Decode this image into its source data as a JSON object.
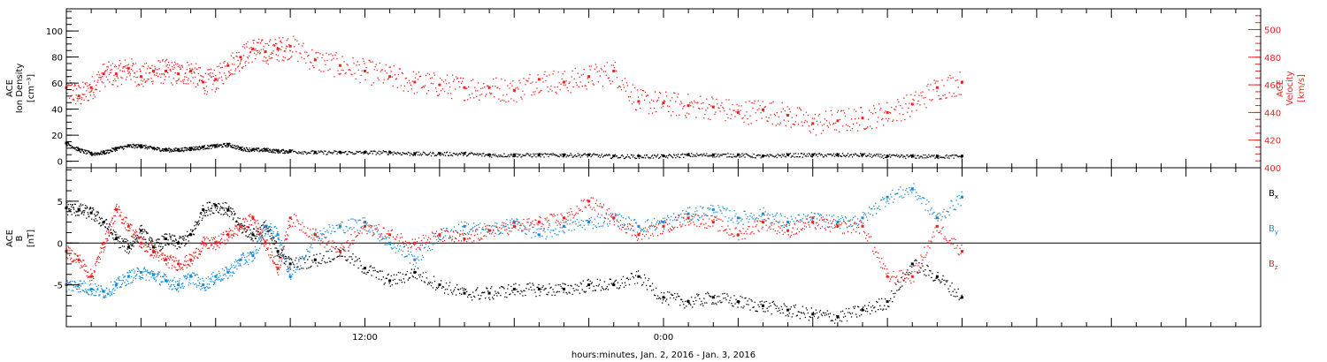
{
  "colors": {
    "axes": "#000000",
    "density": "#000000",
    "velocity": "#e8231f",
    "bx": "#000000",
    "by": "#1a8ad4",
    "bz": "#e8231f"
  },
  "x_axis": {
    "label": "hours:minutes, Jan.  2, 2016 - Jan.  3, 2016",
    "tick_labels": [
      "12:00",
      "0:00"
    ]
  },
  "chart_data": [
    {
      "type": "scatter",
      "name": "plasma",
      "x_unit": "hours since 2016-01-02 00:00",
      "xlim": [
        0,
        48
      ],
      "grid": false,
      "left_axis": {
        "label_lines": [
          "ACE",
          "Ion Density"
        ],
        "unit": "[cm⁻³]",
        "ylim": [
          -5,
          117
        ],
        "ticks": [
          0,
          20,
          40,
          60,
          80,
          100
        ]
      },
      "right_axis": {
        "label_lines": [
          "ACE",
          "Velocity"
        ],
        "unit": "[km/s]",
        "ylim": [
          400,
          515
        ],
        "ticks": [
          400,
          420,
          440,
          460,
          480,
          500
        ]
      },
      "series": [
        {
          "axis": "left",
          "color_key": "density",
          "x": [
            0,
            0.5,
            1,
            1.5,
            2,
            2.5,
            3,
            3.5,
            4,
            4.5,
            5,
            5.5,
            6,
            6.5,
            7,
            7.5,
            8,
            8.5,
            9,
            10,
            11,
            12,
            13,
            14,
            15,
            16,
            17,
            18,
            19,
            20,
            21,
            22,
            23,
            24,
            25,
            26,
            27,
            28,
            29,
            30,
            31,
            32,
            33,
            34,
            35,
            36
          ],
          "y": [
            14,
            9,
            6,
            7,
            10,
            12,
            12,
            10,
            9,
            9,
            10,
            11,
            12,
            13,
            10,
            9,
            9,
            8,
            8,
            7,
            7,
            7,
            7,
            6,
            6,
            6,
            5,
            5,
            5,
            5,
            5,
            4,
            4,
            4,
            5,
            5,
            5,
            4,
            5,
            5,
            5,
            5,
            4,
            4,
            4,
            4
          ]
        },
        {
          "axis": "right",
          "color_key": "velocity",
          "x": [
            0,
            0.5,
            1,
            1.5,
            2,
            2.5,
            3,
            3.5,
            4,
            4.5,
            5,
            5.5,
            6,
            6.5,
            7,
            7.5,
            8,
            8.5,
            9,
            10,
            11,
            12,
            13,
            14,
            15,
            16,
            17,
            18,
            19,
            20,
            21,
            22,
            23,
            24,
            25,
            26,
            27,
            28,
            29,
            30,
            31,
            32,
            33,
            34,
            35,
            36
          ],
          "y": [
            458,
            452,
            458,
            468,
            468,
            472,
            466,
            470,
            470,
            468,
            470,
            462,
            464,
            474,
            480,
            486,
            484,
            486,
            488,
            478,
            474,
            470,
            466,
            462,
            460,
            458,
            458,
            456,
            464,
            462,
            466,
            470,
            448,
            447,
            445,
            444,
            440,
            442,
            438,
            432,
            434,
            436,
            440,
            446,
            458,
            462
          ]
        }
      ]
    },
    {
      "type": "scatter",
      "name": "magnetic-field",
      "x_unit": "hours since 2016-01-02 00:00",
      "xlim": [
        0,
        48
      ],
      "grid": false,
      "zero_line": true,
      "left_axis": {
        "label_lines": [
          "ACE",
          "B"
        ],
        "unit": "[nT]",
        "ylim": [
          -10,
          9
        ],
        "ticks": [
          -5,
          0,
          5
        ]
      },
      "legend": {
        "placement": "right",
        "entries": [
          "Bx",
          "By",
          "Bz"
        ]
      },
      "series": [
        {
          "name": "Bx",
          "color_key": "bx",
          "x": [
            0,
            0.5,
            1,
            1.5,
            2,
            2.5,
            3,
            3.5,
            4,
            4.5,
            5,
            5.5,
            6,
            6.5,
            7,
            7.5,
            8,
            8.5,
            9,
            10,
            11,
            12,
            13,
            14,
            15,
            16,
            17,
            18,
            19,
            20,
            21,
            22,
            23,
            24,
            25,
            26,
            27,
            28,
            29,
            30,
            31,
            32,
            33,
            34,
            35,
            36
          ],
          "y": [
            4.2,
            4.0,
            3.6,
            2.5,
            0.5,
            -0.5,
            1.5,
            -0.5,
            0.5,
            0.0,
            1.0,
            4.0,
            4.5,
            4.0,
            2.0,
            1.0,
            2.0,
            -1.0,
            -2.5,
            -2.0,
            -1.0,
            -3.0,
            -4.5,
            -3.5,
            -5.0,
            -6.0,
            -6.0,
            -5.5,
            -5.5,
            -5.5,
            -5.0,
            -5.0,
            -4.0,
            -6.5,
            -7.0,
            -6.5,
            -7.0,
            -7.5,
            -8.0,
            -8.5,
            -8.8,
            -8.0,
            -7.0,
            -2.5,
            -4.0,
            -6.5
          ]
        },
        {
          "name": "By",
          "color_key": "by",
          "x": [
            0,
            0.5,
            1,
            1.5,
            2,
            2.5,
            3,
            3.5,
            4,
            4.5,
            5,
            5.5,
            6,
            6.5,
            7,
            7.5,
            8,
            8.5,
            9,
            10,
            11,
            12,
            13,
            14,
            15,
            16,
            17,
            18,
            19,
            20,
            21,
            22,
            23,
            24,
            25,
            26,
            27,
            28,
            29,
            30,
            31,
            32,
            33,
            34,
            35,
            36
          ],
          "y": [
            -5.0,
            -5.0,
            -5.5,
            -5.8,
            -5.0,
            -4.0,
            -3.5,
            -3.8,
            -4.5,
            -5.0,
            -4.0,
            -5.0,
            -4.0,
            -3.5,
            -2.0,
            -1.5,
            2.0,
            1.0,
            -4.0,
            1.0,
            2.0,
            2.5,
            0.0,
            -2.0,
            1.0,
            2.0,
            1.5,
            2.5,
            1.0,
            2.0,
            2.5,
            3.0,
            2.0,
            2.5,
            3.5,
            4.0,
            3.0,
            3.5,
            2.5,
            3.0,
            2.5,
            3.0,
            5.5,
            6.5,
            3.0,
            5.5
          ]
        },
        {
          "name": "Bz",
          "color_key": "bz",
          "x": [
            0,
            0.5,
            1,
            1.5,
            2,
            2.5,
            3,
            3.5,
            4,
            4.5,
            5,
            5.5,
            6,
            6.5,
            7,
            7.5,
            8,
            8.5,
            9,
            10,
            11,
            12,
            13,
            14,
            15,
            16,
            17,
            18,
            19,
            20,
            21,
            22,
            23,
            24,
            25,
            26,
            27,
            28,
            29,
            30,
            31,
            32,
            33,
            34,
            35,
            36
          ],
          "y": [
            -1.0,
            -2.0,
            -4.0,
            0.0,
            4.0,
            2.0,
            0.0,
            -1.0,
            -2.0,
            -2.5,
            -2.0,
            0.0,
            0.0,
            1.0,
            2.0,
            3.0,
            0.0,
            -3.0,
            3.0,
            1.0,
            -1.0,
            2.0,
            1.0,
            0.0,
            1.0,
            0.5,
            1.5,
            2.0,
            2.5,
            3.0,
            5.0,
            3.0,
            1.0,
            2.0,
            3.0,
            2.5,
            1.0,
            2.5,
            1.5,
            2.5,
            2.0,
            2.0,
            -4.0,
            -4.0,
            2.0,
            -1.0
          ]
        }
      ]
    }
  ]
}
